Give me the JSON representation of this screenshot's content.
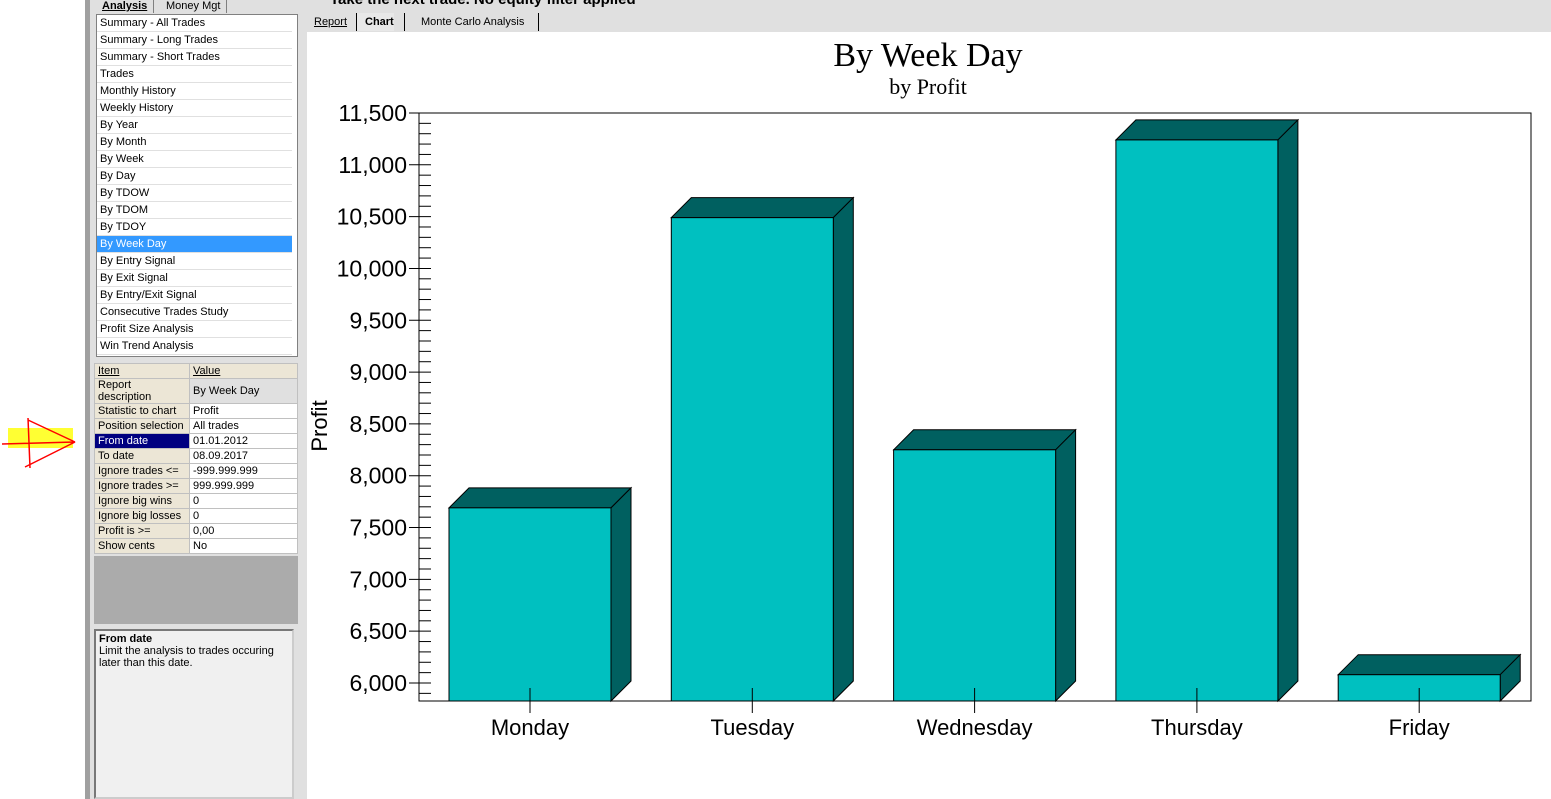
{
  "window": {
    "status_text": "Take the next trade. No equity filter applied"
  },
  "left_tabs": [
    "Analysis",
    "Money Mgt"
  ],
  "report_list": {
    "items": [
      "Summary - All Trades",
      "Summary - Long Trades",
      "Summary - Short Trades",
      "Trades",
      "Monthly History",
      "Weekly History",
      "By Year",
      "By Month",
      "By Week",
      "By Day",
      "By TDOW",
      "By TDOM",
      "By TDOY",
      "By Week Day",
      "By Entry Signal",
      "By Exit Signal",
      "By Entry/Exit Signal",
      "Consecutive Trades Study",
      "Profit Size Analysis",
      "Win Trend Analysis"
    ],
    "selected": "By Week Day"
  },
  "properties": {
    "header": {
      "item": "Item",
      "value": "Value"
    },
    "rows": [
      {
        "item": "Report description",
        "value": "By Week Day"
      },
      {
        "item": "Statistic to chart",
        "value": "Profit"
      },
      {
        "item": "Position selection",
        "value": "All trades"
      },
      {
        "item": "From date",
        "value": "01.01.2012"
      },
      {
        "item": "To date",
        "value": "08.09.2017"
      },
      {
        "item": "Ignore trades <=",
        "value": "-999.999.999"
      },
      {
        "item": "Ignore trades >=",
        "value": "999.999.999"
      },
      {
        "item": "Ignore big wins",
        "value": "0"
      },
      {
        "item": "Ignore big losses",
        "value": "0"
      },
      {
        "item": "Profit is >=",
        "value": "0,00"
      },
      {
        "item": "Show cents",
        "value": "No"
      }
    ],
    "selected": "From date"
  },
  "help": {
    "title": "From date",
    "text": "Limit the analysis to trades occuring later than this date."
  },
  "main_tabs": [
    "Report",
    "Chart",
    "Monte Carlo Analysis"
  ],
  "active_tab": "Chart",
  "chart_data": {
    "type": "bar",
    "title": "By Week Day",
    "subtitle": "by Profit",
    "xlabel": "",
    "ylabel": "Profit",
    "categories": [
      "Monday",
      "Tuesday",
      "Wednesday",
      "Thursday",
      "Friday"
    ],
    "values": [
      7690,
      10490,
      8250,
      11240,
      6080
    ],
    "ylim": [
      5830,
      11500
    ],
    "yticks": [
      6000,
      6500,
      7000,
      7500,
      8000,
      8500,
      9000,
      9500,
      10000,
      10500,
      11000,
      11500
    ],
    "ytick_labels": [
      "6,000",
      "6,500",
      "7,000",
      "7,500",
      "8,000",
      "8,500",
      "9,000",
      "9,500",
      "10,000",
      "10,500",
      "11,000",
      "11,500"
    ],
    "style": "3d",
    "colors": {
      "front": "#00c0c0",
      "top_side": "#006060"
    },
    "grid": false
  }
}
